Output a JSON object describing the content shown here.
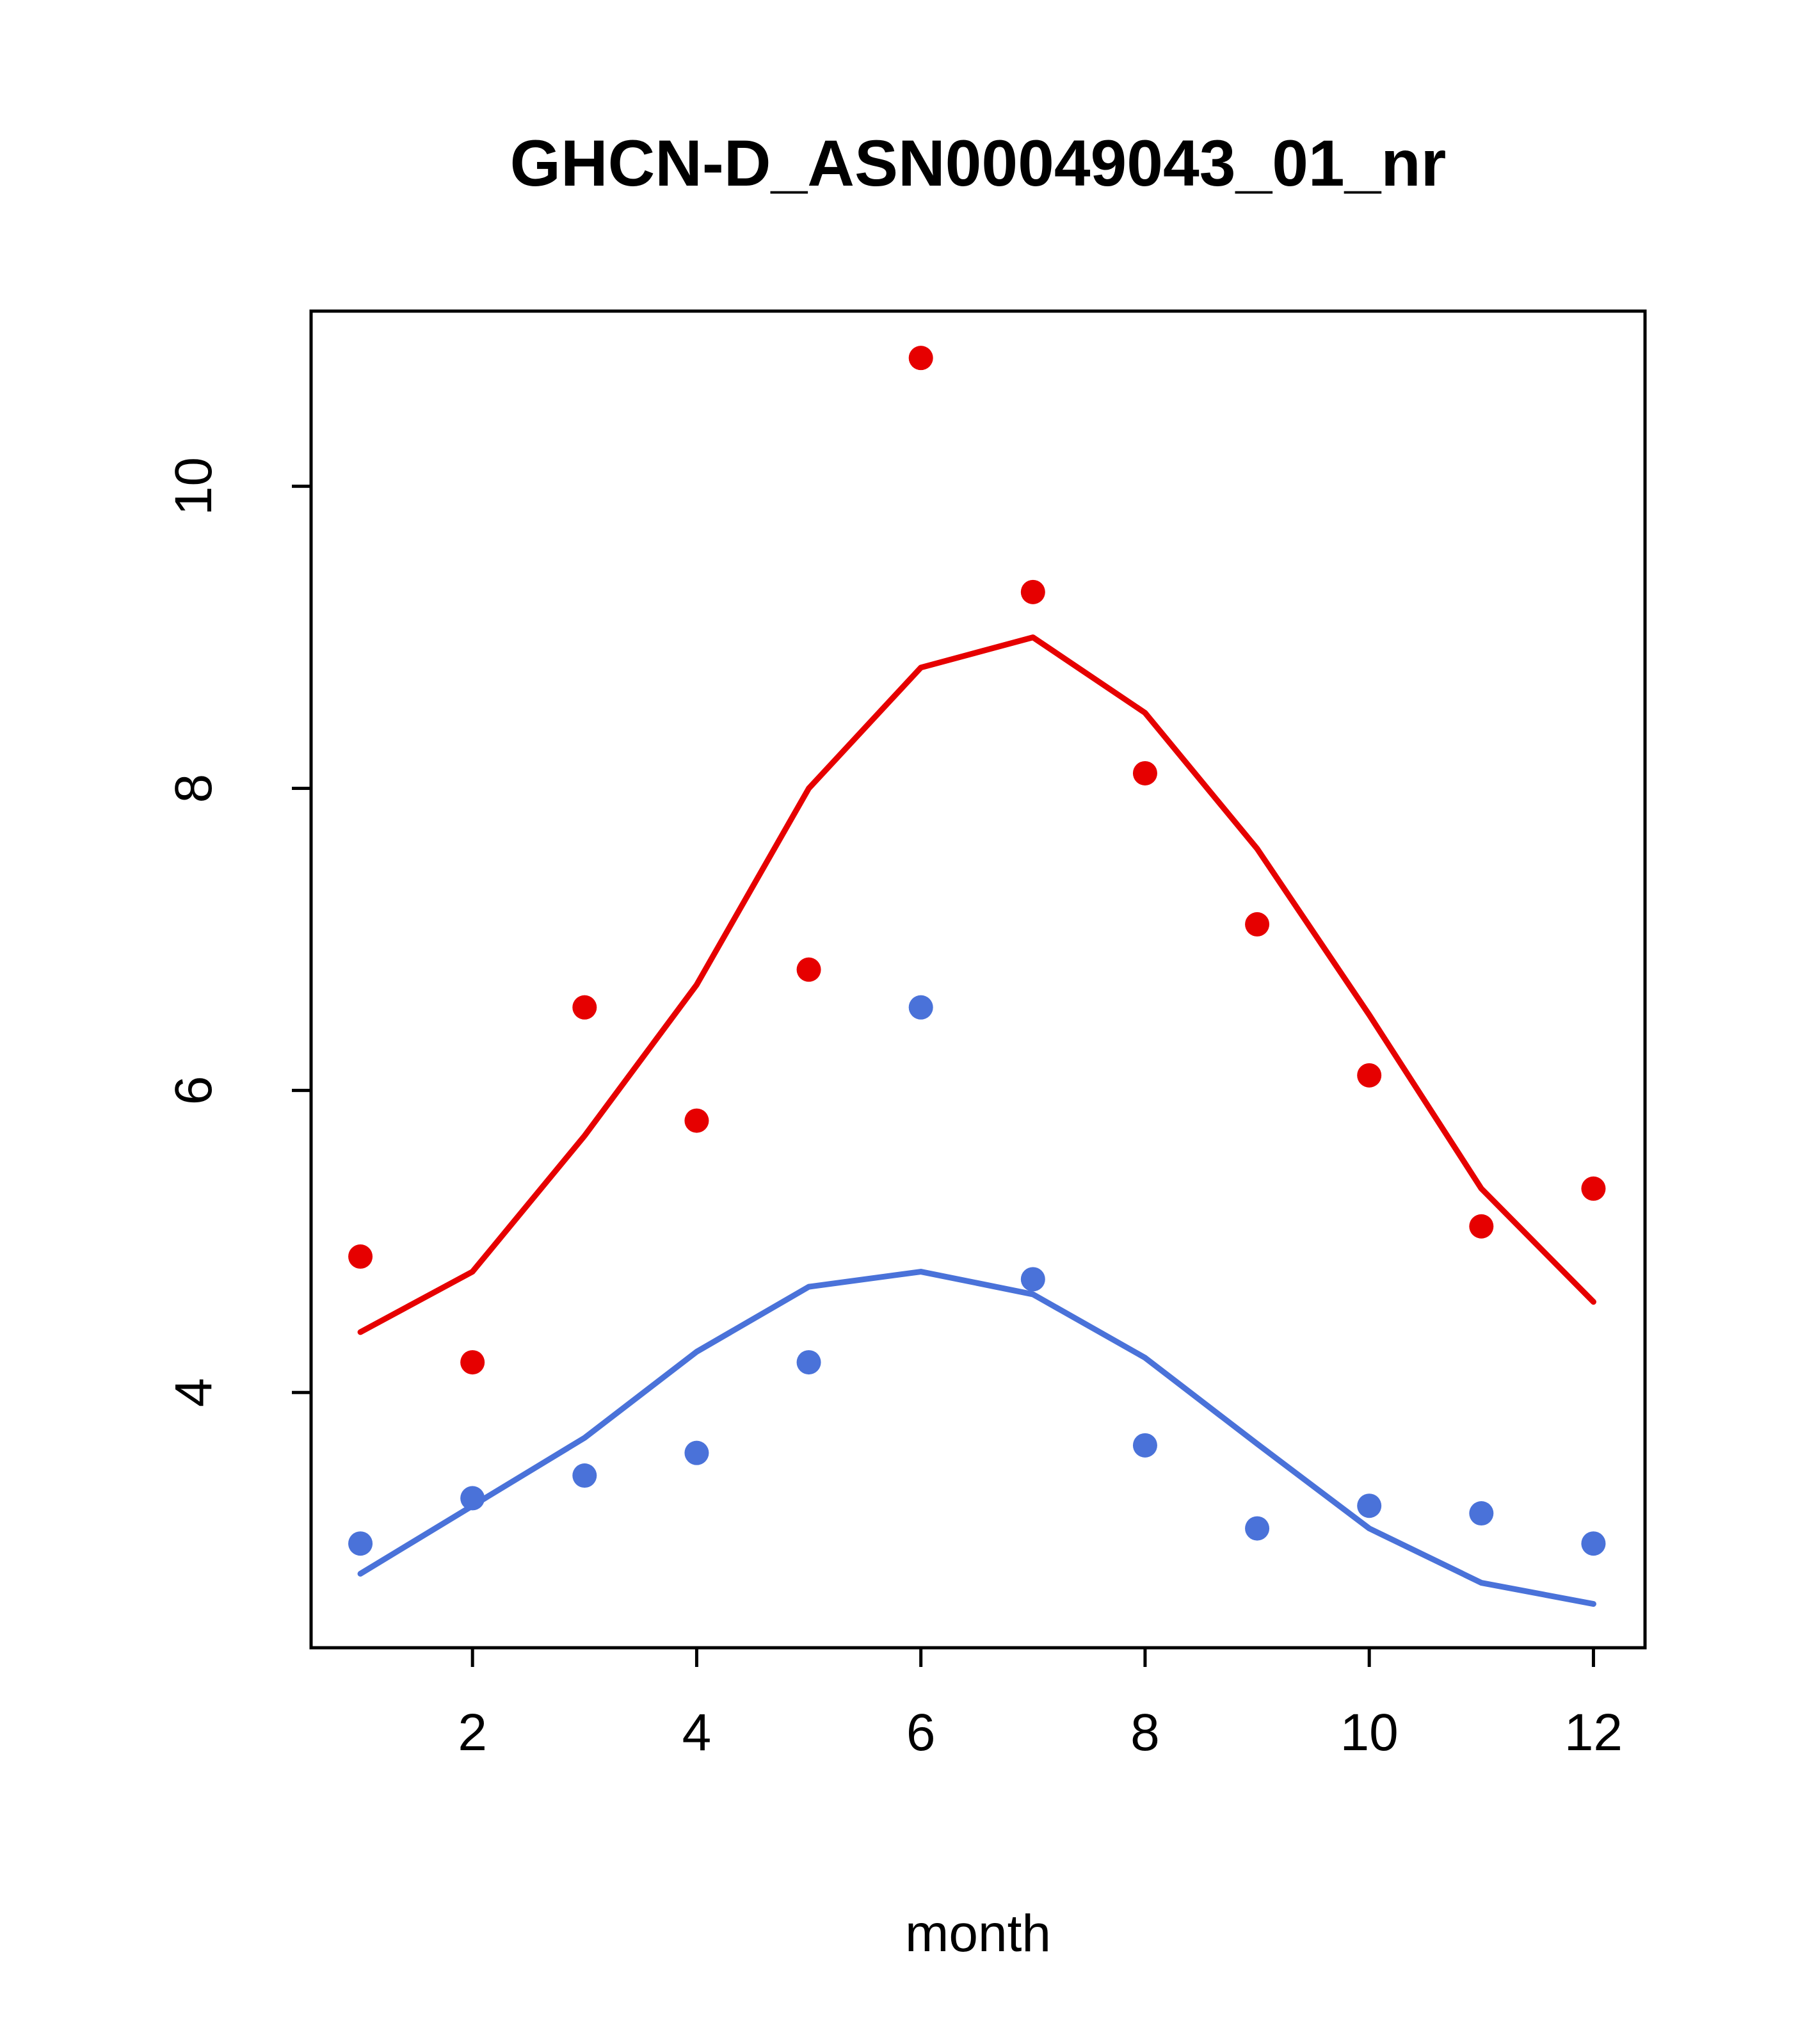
{
  "chart_data": {
    "type": "scatter",
    "title": "GHCN-D_ASN00049043_01_nr",
    "xlabel": "month",
    "ylabel": "",
    "x": [
      1,
      2,
      3,
      4,
      5,
      6,
      7,
      8,
      9,
      10,
      11,
      12
    ],
    "xlim": [
      0.56,
      12.46
    ],
    "ylim": [
      2.31,
      11.16
    ],
    "xticks": [
      2,
      4,
      6,
      8,
      10,
      12
    ],
    "yticks": [
      4,
      6,
      8,
      10
    ],
    "grid": false,
    "legend": null,
    "colors": {
      "red": "#e60000",
      "blue": "#4a72d9",
      "axis": "#000000"
    },
    "series": [
      {
        "name": "red-line",
        "style": "line",
        "color": "#e60000",
        "values": [
          4.4,
          4.8,
          5.7,
          6.7,
          8.0,
          8.8,
          9.0,
          8.5,
          7.6,
          6.5,
          5.35,
          4.6
        ]
      },
      {
        "name": "blue-line",
        "style": "line",
        "color": "#4a72d9",
        "values": [
          2.8,
          3.25,
          3.7,
          4.27,
          4.7,
          4.8,
          4.65,
          4.23,
          3.66,
          3.1,
          2.74,
          2.6
        ]
      },
      {
        "name": "red-points",
        "style": "points",
        "color": "#e60000",
        "values": [
          4.9,
          4.2,
          6.55,
          5.8,
          6.8,
          10.85,
          9.3,
          8.1,
          7.1,
          6.1,
          5.1,
          5.35
        ]
      },
      {
        "name": "blue-points",
        "style": "points",
        "color": "#4a72d9",
        "values": [
          3.0,
          3.3,
          3.45,
          3.6,
          4.2,
          6.55,
          4.75,
          3.65,
          3.1,
          3.25,
          3.2,
          3.0
        ]
      }
    ]
  }
}
